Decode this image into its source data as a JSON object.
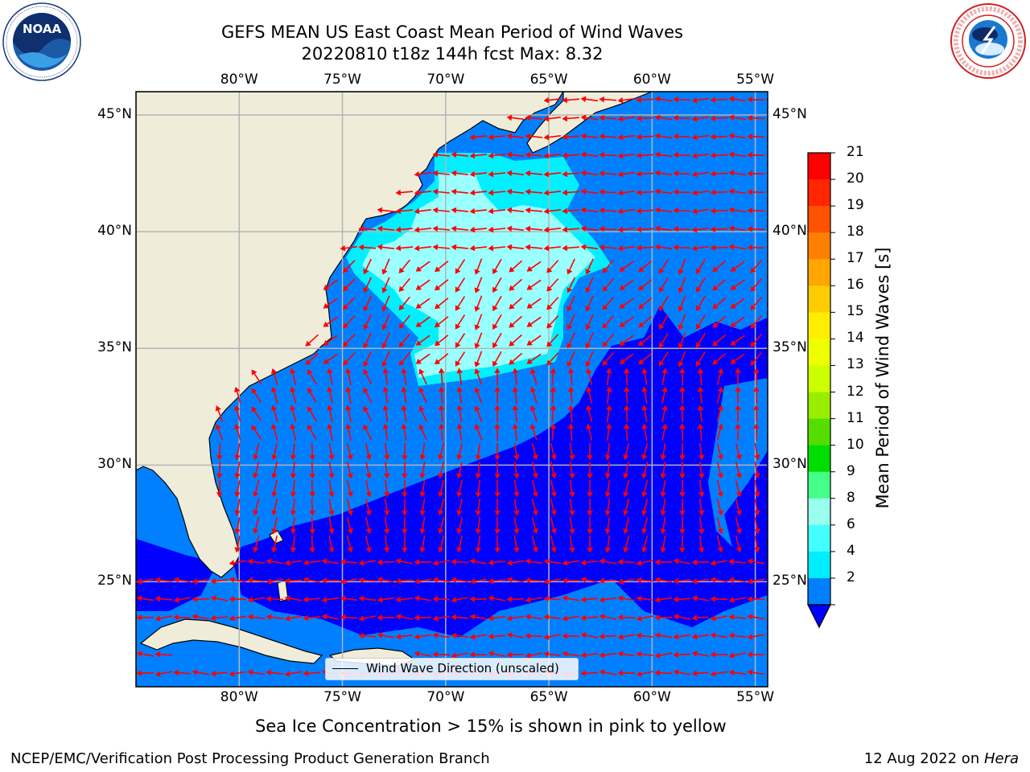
{
  "header": {
    "title_line1": "GEFS MEAN US East Coast Mean Period of Wind Waves",
    "title_line2": "20220810 t18z 144h fcst   Max: 8.32"
  },
  "logos": {
    "left": {
      "name": "NOAA",
      "ring_text": "NATIONAL OCEANIC AND ATMOSPHERIC ADMINISTRATION · U.S. DEPARTMENT OF COMMERCE"
    },
    "right": {
      "name": "NATIONAL WEATHER SERVICE"
    }
  },
  "map": {
    "lon_labels": [
      "80°W",
      "75°W",
      "70°W",
      "65°W",
      "60°W",
      "55°W"
    ],
    "lat_labels": [
      "45°N",
      "40°N",
      "35°N",
      "30°N",
      "25°N"
    ],
    "lon_ticks": [
      -80,
      -75,
      -70,
      -65,
      -60,
      -55
    ],
    "lat_ticks": [
      45,
      40,
      35,
      30,
      25
    ],
    "extent": {
      "lon_min": -85,
      "lon_max": -54.4,
      "lat_min": 20.5,
      "lat_max": 46.0
    },
    "colors": {
      "land": "#efedda",
      "grid": "#b4b4b4",
      "arrows": "#ff0000",
      "coast": "#000000"
    },
    "legend_label": "Wind Wave Direction (unscaled)"
  },
  "colorbar": {
    "label": "Mean Period of Wind Waves [s]",
    "ticks": [
      "21",
      "20",
      "19",
      "18",
      "17",
      "16",
      "15",
      "14",
      "13",
      "12",
      "11",
      "10",
      "9",
      "8",
      "6",
      "4",
      "2"
    ],
    "bands": [
      "#ff0000",
      "#ff2600",
      "#ff5300",
      "#ff8000",
      "#ffa600",
      "#ffcc00",
      "#ffee00",
      "#eeff00",
      "#ccff00",
      "#99ee00",
      "#55dd00",
      "#00dd00",
      "#44ff88",
      "#99ffee",
      "#44ffff",
      "#00eeff",
      "#0080ff"
    ],
    "extend_color": "#0000ff"
  },
  "footer": {
    "sea_ice_note": "Sea Ice Concentration > 15% is shown in pink to yellow",
    "branch": "NCEP/EMC/Verification Post Processing Product Generation Branch",
    "date": "12 Aug 2022 on ",
    "machine": "Hera"
  }
}
